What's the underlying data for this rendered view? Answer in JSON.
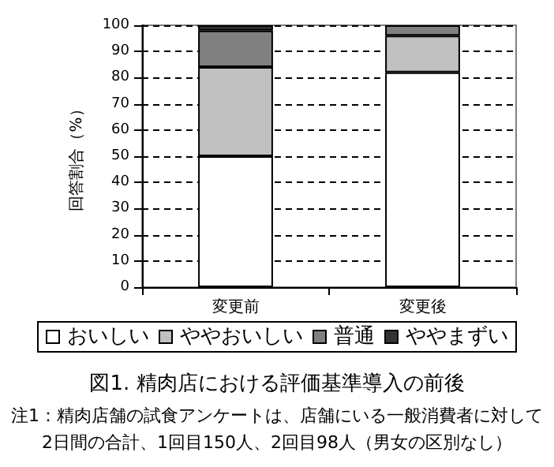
{
  "chart_data": {
    "type": "bar",
    "stacked": true,
    "title": "図1. 精肉店における評価基準導入の前後",
    "ylabel": "回答割合（%）",
    "categories": [
      "変更前",
      "変更後"
    ],
    "series": [
      {
        "name": "おいしい",
        "color": "#ffffff",
        "values": [
          50,
          82
        ]
      },
      {
        "name": "ややおいしい",
        "color": "#c0c0c0",
        "values": [
          34,
          14
        ]
      },
      {
        "name": "普通",
        "color": "#808080",
        "values": [
          14,
          4
        ]
      },
      {
        "name": "ややまずい",
        "color": "#333333",
        "values": [
          2,
          0
        ]
      }
    ],
    "ylim": [
      0,
      100
    ],
    "yticks": [
      0,
      10,
      20,
      30,
      40,
      50,
      60,
      70,
      80,
      90,
      100
    ],
    "grid": "y",
    "legend": "bottom",
    "annotations": [
      "注1：精肉店舗の試食アンケートは、店舗にいる一般消費者に対して",
      "2日間の合計、1回目150人、2回目98人（男女の区別なし）"
    ]
  }
}
